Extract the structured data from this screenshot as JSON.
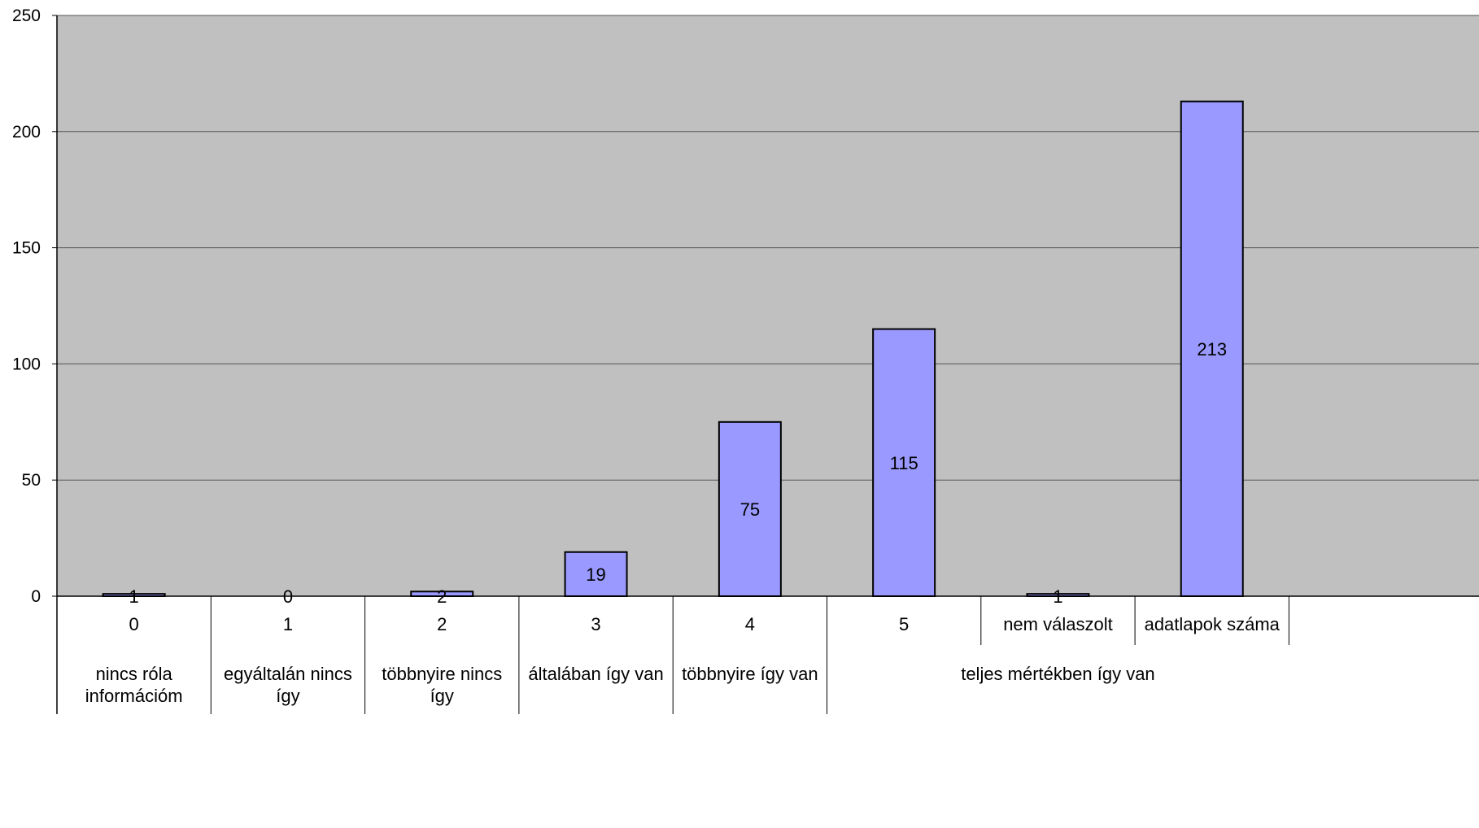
{
  "chart_data": {
    "type": "bar",
    "title": "",
    "xlabel": "",
    "ylabel": "",
    "ylim": [
      0,
      250
    ],
    "yticks": [
      0,
      50,
      100,
      150,
      200,
      250
    ],
    "grid": true,
    "legend": "none",
    "colors": {
      "plot_background": "#c0c0c0",
      "bar_fill": "#9999ff",
      "bar_stroke": "#000000",
      "grid": "#555555"
    },
    "categories": [
      "0",
      "1",
      "2",
      "3",
      "4",
      "5",
      "nem válaszolt",
      "adatlapok száma"
    ],
    "values": [
      1,
      0,
      2,
      19,
      75,
      115,
      1,
      213
    ],
    "data_labels": [
      "1",
      "0",
      "2",
      "19",
      "75",
      "115",
      "1",
      "213"
    ],
    "category_groups": [
      {
        "lines": [
          "nincs róla",
          "információm"
        ]
      },
      {
        "lines": [
          "egyáltalán nincs",
          "így"
        ]
      },
      {
        "lines": [
          "többnyire nincs",
          "így"
        ]
      },
      {
        "lines": [
          "általában így van"
        ]
      },
      {
        "lines": [
          "többnyire így van"
        ]
      },
      {
        "lines": [
          "teljes mértékben így van"
        ]
      }
    ]
  }
}
